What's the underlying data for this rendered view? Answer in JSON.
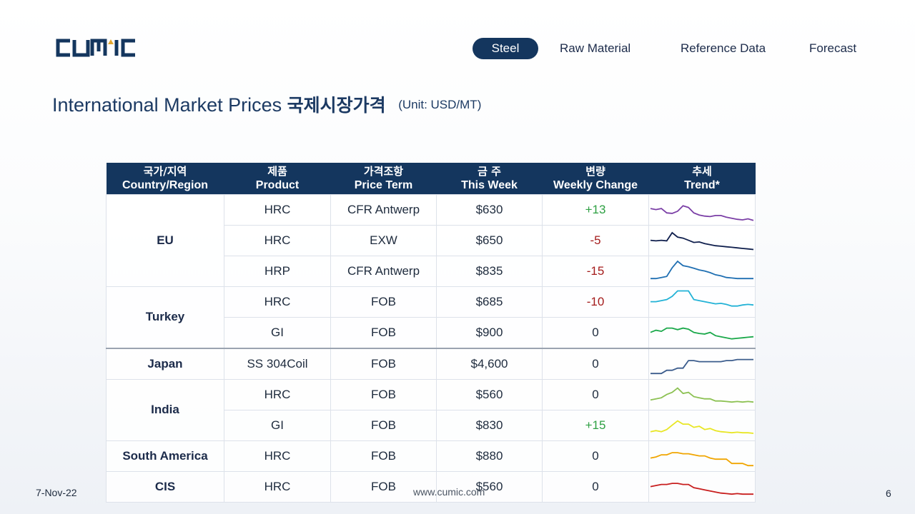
{
  "brand": {
    "logo_text": "CUMIC"
  },
  "nav": {
    "items": [
      {
        "label": "Steel",
        "active": true
      },
      {
        "label": "Raw Material",
        "active": false
      },
      {
        "label": "Reference Data",
        "active": false
      },
      {
        "label": "Forecast",
        "active": false
      }
    ]
  },
  "title": {
    "en": "International Market Prices",
    "ko": "국제시장가격",
    "unit": "(Unit: USD/MT)"
  },
  "table": {
    "headers": [
      {
        "ko": "국가/지역",
        "en": "Country/Region"
      },
      {
        "ko": "제품",
        "en": "Product"
      },
      {
        "ko": "가격조항",
        "en": "Price Term"
      },
      {
        "ko": "금 주",
        "en": "This Week"
      },
      {
        "ko": "변량",
        "en": "Weekly Change"
      },
      {
        "ko": "추세",
        "en": "Trend*"
      }
    ],
    "rows": [
      {
        "country": "EU",
        "product": "HRC",
        "term": "CFR Antwerp",
        "price": "$630",
        "change": "+13",
        "trend_color": "#7b3fa6",
        "trend": [
          60,
          58,
          60,
          52,
          51,
          55,
          65,
          62,
          52,
          48,
          46,
          45,
          47,
          47,
          44,
          42,
          40,
          39,
          41,
          38
        ]
      },
      {
        "country": "EU",
        "product": "HRC",
        "term": "EXW",
        "price": "$650",
        "change": "-5",
        "trend_color": "#0f1f4d",
        "trend": [
          58,
          57,
          58,
          57,
          72,
          64,
          62,
          58,
          54,
          55,
          52,
          50,
          48,
          47,
          46,
          45,
          44,
          43,
          42,
          41
        ]
      },
      {
        "country": "EU",
        "product": "HRP",
        "term": "CFR Antwerp",
        "price": "$835",
        "change": "-15",
        "trend_color": "#1f6fb2",
        "trend": [
          44,
          44,
          46,
          48,
          64,
          76,
          68,
          66,
          63,
          60,
          58,
          55,
          51,
          49,
          46,
          45,
          44,
          44,
          44,
          44
        ]
      },
      {
        "country": "Turkey",
        "product": "HRC",
        "term": "FOB",
        "price": "$685",
        "change": "-10",
        "trend_color": "#22b2d6",
        "trend": [
          58,
          58,
          60,
          62,
          68,
          78,
          78,
          78,
          62,
          60,
          58,
          56,
          54,
          55,
          53,
          50,
          50,
          52,
          53,
          52
        ]
      },
      {
        "country": "Turkey",
        "product": "GI",
        "term": "FOB",
        "price": "$900",
        "change": "0",
        "trend_color": "#1aa84a",
        "trend": [
          58,
          62,
          60,
          66,
          66,
          63,
          66,
          64,
          58,
          56,
          55,
          58,
          52,
          50,
          48,
          46,
          47,
          48,
          49,
          50
        ]
      },
      {
        "country": "Japan",
        "product": "SS 304Coil",
        "term": "FOB",
        "price": "$4,600",
        "change": "0",
        "trend_color": "#3b5c8c",
        "trend": [
          40,
          40,
          40,
          46,
          46,
          50,
          50,
          64,
          64,
          62,
          62,
          62,
          62,
          62,
          64,
          64,
          66,
          66,
          66,
          66
        ]
      },
      {
        "country": "India",
        "product": "HRC",
        "term": "FOB",
        "price": "$560",
        "change": "0",
        "trend_color": "#8cc152",
        "trend": [
          48,
          50,
          52,
          58,
          62,
          70,
          60,
          62,
          54,
          52,
          50,
          50,
          46,
          46,
          45,
          44,
          45,
          44,
          45,
          44
        ]
      },
      {
        "country": "India",
        "product": "GI",
        "term": "FOB",
        "price": "$830",
        "change": "+15",
        "trend_color": "#e8e624",
        "trend": [
          46,
          48,
          46,
          50,
          58,
          66,
          60,
          60,
          54,
          56,
          50,
          52,
          48,
          46,
          45,
          44,
          45,
          44,
          44,
          43
        ]
      },
      {
        "country": "South America",
        "product": "HRC",
        "term": "FOB",
        "price": "$880",
        "change": "0",
        "trend_color": "#f0a500",
        "trend": [
          54,
          56,
          60,
          60,
          64,
          64,
          62,
          62,
          60,
          58,
          58,
          54,
          52,
          52,
          52,
          44,
          44,
          44,
          40,
          40
        ]
      },
      {
        "country": "CIS",
        "product": "HRC",
        "term": "FOB",
        "price": "$560",
        "change": "0",
        "trend_color": "#c81e1e",
        "trend": [
          58,
          60,
          62,
          62,
          64,
          64,
          62,
          62,
          56,
          54,
          52,
          50,
          48,
          46,
          45,
          44,
          45,
          44,
          44,
          44
        ]
      }
    ]
  },
  "footer": {
    "date": "7-Nov-22",
    "url": "www.cumic.com",
    "page": "6"
  }
}
